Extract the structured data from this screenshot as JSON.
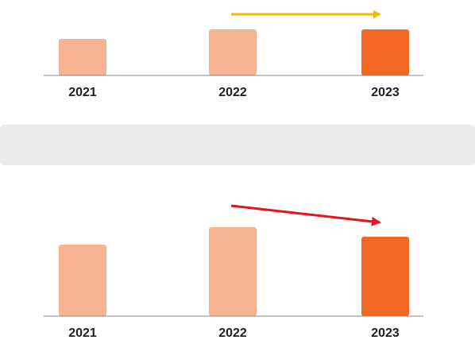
{
  "chart_data": [
    {
      "type": "bar",
      "categories": [
        "2021",
        "2022",
        "2023"
      ],
      "values": [
        46,
        58,
        58
      ],
      "colors": [
        "#f6b391",
        "#f6b391",
        "#f26722"
      ]
    },
    {
      "type": "bar",
      "categories": [
        "2021",
        "2022",
        "2023"
      ],
      "values": [
        90,
        112,
        100
      ],
      "colors": [
        "#f6b391",
        "#f6b391",
        "#f26722"
      ]
    }
  ]
}
